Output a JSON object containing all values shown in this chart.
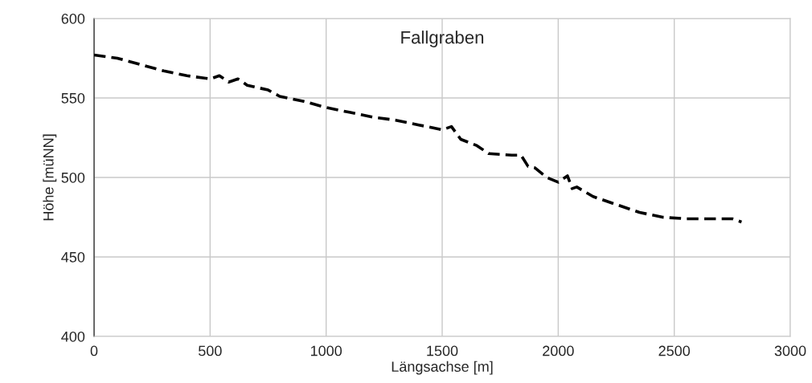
{
  "chart_data": {
    "type": "line",
    "title": "Fallgraben",
    "xlabel": "Längsachse [m]",
    "ylabel": "Höhe [müNN]",
    "xlim": [
      0,
      3000
    ],
    "xticks": [
      0,
      500,
      1000,
      1500,
      2000,
      2500,
      3000
    ],
    "ylim": [
      400,
      600
    ],
    "yticks": [
      400,
      450,
      500,
      550,
      600
    ],
    "grid": true,
    "line_style": "dashed",
    "series": [
      {
        "color": "#000000",
        "x": [
          0,
          100,
          200,
          300,
          400,
          500,
          540,
          580,
          620,
          660,
          750,
          800,
          900,
          1000,
          1100,
          1200,
          1300,
          1400,
          1500,
          1540,
          1580,
          1650,
          1700,
          1800,
          1840,
          1870,
          1900,
          1950,
          2000,
          2040,
          2060,
          2080,
          2150,
          2250,
          2350,
          2450,
          2550,
          2650,
          2750,
          2790
        ],
        "values": [
          577,
          575,
          571,
          567,
          564,
          562,
          564,
          560,
          562,
          558,
          555,
          551,
          548,
          544,
          541,
          538,
          536,
          533,
          530,
          532,
          524,
          520,
          515,
          514,
          514,
          507,
          506,
          500,
          497,
          501,
          493,
          494,
          488,
          483,
          478,
          475,
          474,
          474,
          474,
          472
        ]
      }
    ]
  }
}
